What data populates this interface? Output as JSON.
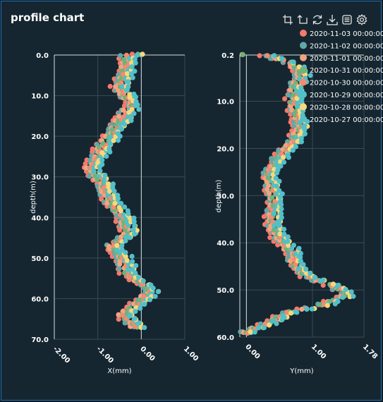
{
  "title": "profile chart",
  "toolbox": [
    {
      "name": "zoom-icon"
    },
    {
      "name": "zoom-reset-icon"
    },
    {
      "name": "restore-icon"
    },
    {
      "name": "download-icon"
    },
    {
      "name": "data-view-icon"
    },
    {
      "name": "settings-icon"
    }
  ],
  "legend": [
    {
      "label": "2020-11-03 00:00:00",
      "color": "#f47a6c"
    },
    {
      "label": "2020-11-02 00:00:00",
      "color": "#5fa8a8"
    },
    {
      "label": "2020-11-01 00:00:00",
      "color": "#f2a480"
    },
    {
      "label": "2020-10-31 00:00:00",
      "color": "#6cb37c"
    },
    {
      "label": "2020-10-30 00:00:00",
      "color": "#f48a6e"
    },
    {
      "label": "2020-10-29 00:00:00",
      "color": "#4dc1c6"
    },
    {
      "label": "2020-10-28 00:00:00",
      "color": "#f8d87a"
    },
    {
      "label": "2020-10-27 00:00:00",
      "color": "#52bfc9"
    }
  ],
  "chart_data": [
    {
      "type": "scatter",
      "xlabel": "X(mm)",
      "ylabel": "depth(m)",
      "xlim": [
        -2.0,
        1.0
      ],
      "ylim": [
        0.0,
        70.0
      ],
      "xticks": [
        "-2.00",
        "-1.00",
        "0.00",
        "1.00"
      ],
      "yticks": [
        "0.0",
        "10.0",
        "20.0",
        "30.0",
        "40.0",
        "50.0",
        "60.0",
        "70.0"
      ],
      "y_inverted": true,
      "profile": [
        {
          "depth": 0,
          "x": -0.3
        },
        {
          "depth": 4,
          "x": -0.35
        },
        {
          "depth": 8,
          "x": -0.5
        },
        {
          "depth": 12,
          "x": -0.2
        },
        {
          "depth": 16,
          "x": -0.45
        },
        {
          "depth": 20,
          "x": -0.7
        },
        {
          "depth": 24,
          "x": -0.95
        },
        {
          "depth": 28,
          "x": -1.15
        },
        {
          "depth": 32,
          "x": -0.85
        },
        {
          "depth": 36,
          "x": -0.7
        },
        {
          "depth": 40,
          "x": -0.4
        },
        {
          "depth": 44,
          "x": -0.25
        },
        {
          "depth": 47,
          "x": -0.65
        },
        {
          "depth": 50,
          "x": -0.4
        },
        {
          "depth": 54,
          "x": -0.3
        },
        {
          "depth": 58,
          "x": 0.25
        },
        {
          "depth": 61,
          "x": -0.05
        },
        {
          "depth": 64,
          "x": -0.4
        },
        {
          "depth": 67,
          "x": -0.1
        }
      ]
    },
    {
      "type": "scatter",
      "xlabel": "Y(mm)",
      "ylabel": "depth(m)",
      "xlim": [
        -0.1,
        1.78
      ],
      "ylim": [
        0.2,
        60.0
      ],
      "xticks": [
        "0.00",
        "1.00",
        "1.78"
      ],
      "xtick_values": [
        0.0,
        1.0,
        1.78
      ],
      "yticks": [
        "0.2",
        "10.0",
        "20.0",
        "30.0",
        "40.0",
        "50.0",
        "60.0"
      ],
      "ytick_values": [
        0.2,
        10.0,
        20.0,
        30.0,
        40.0,
        50.0,
        60.0
      ],
      "y_inverted": true,
      "profile": [
        {
          "depth": 0.2,
          "x": 0.3
        },
        {
          "depth": 2,
          "x": 0.7
        },
        {
          "depth": 4,
          "x": 0.85
        },
        {
          "depth": 7,
          "x": 0.75
        },
        {
          "depth": 10,
          "x": 0.72
        },
        {
          "depth": 13,
          "x": 0.78
        },
        {
          "depth": 16,
          "x": 0.82
        },
        {
          "depth": 19,
          "x": 0.7
        },
        {
          "depth": 22,
          "x": 0.5
        },
        {
          "depth": 25,
          "x": 0.35
        },
        {
          "depth": 28,
          "x": 0.38
        },
        {
          "depth": 31,
          "x": 0.45
        },
        {
          "depth": 34,
          "x": 0.4
        },
        {
          "depth": 37,
          "x": 0.42
        },
        {
          "depth": 40,
          "x": 0.55
        },
        {
          "depth": 42,
          "x": 0.72
        },
        {
          "depth": 45,
          "x": 0.75
        },
        {
          "depth": 47,
          "x": 0.9
        },
        {
          "depth": 49,
          "x": 1.3
        },
        {
          "depth": 51,
          "x": 1.55
        },
        {
          "depth": 53,
          "x": 1.2
        },
        {
          "depth": 55,
          "x": 0.6
        },
        {
          "depth": 57,
          "x": 0.35
        },
        {
          "depth": 59,
          "x": 0.0
        }
      ]
    }
  ]
}
